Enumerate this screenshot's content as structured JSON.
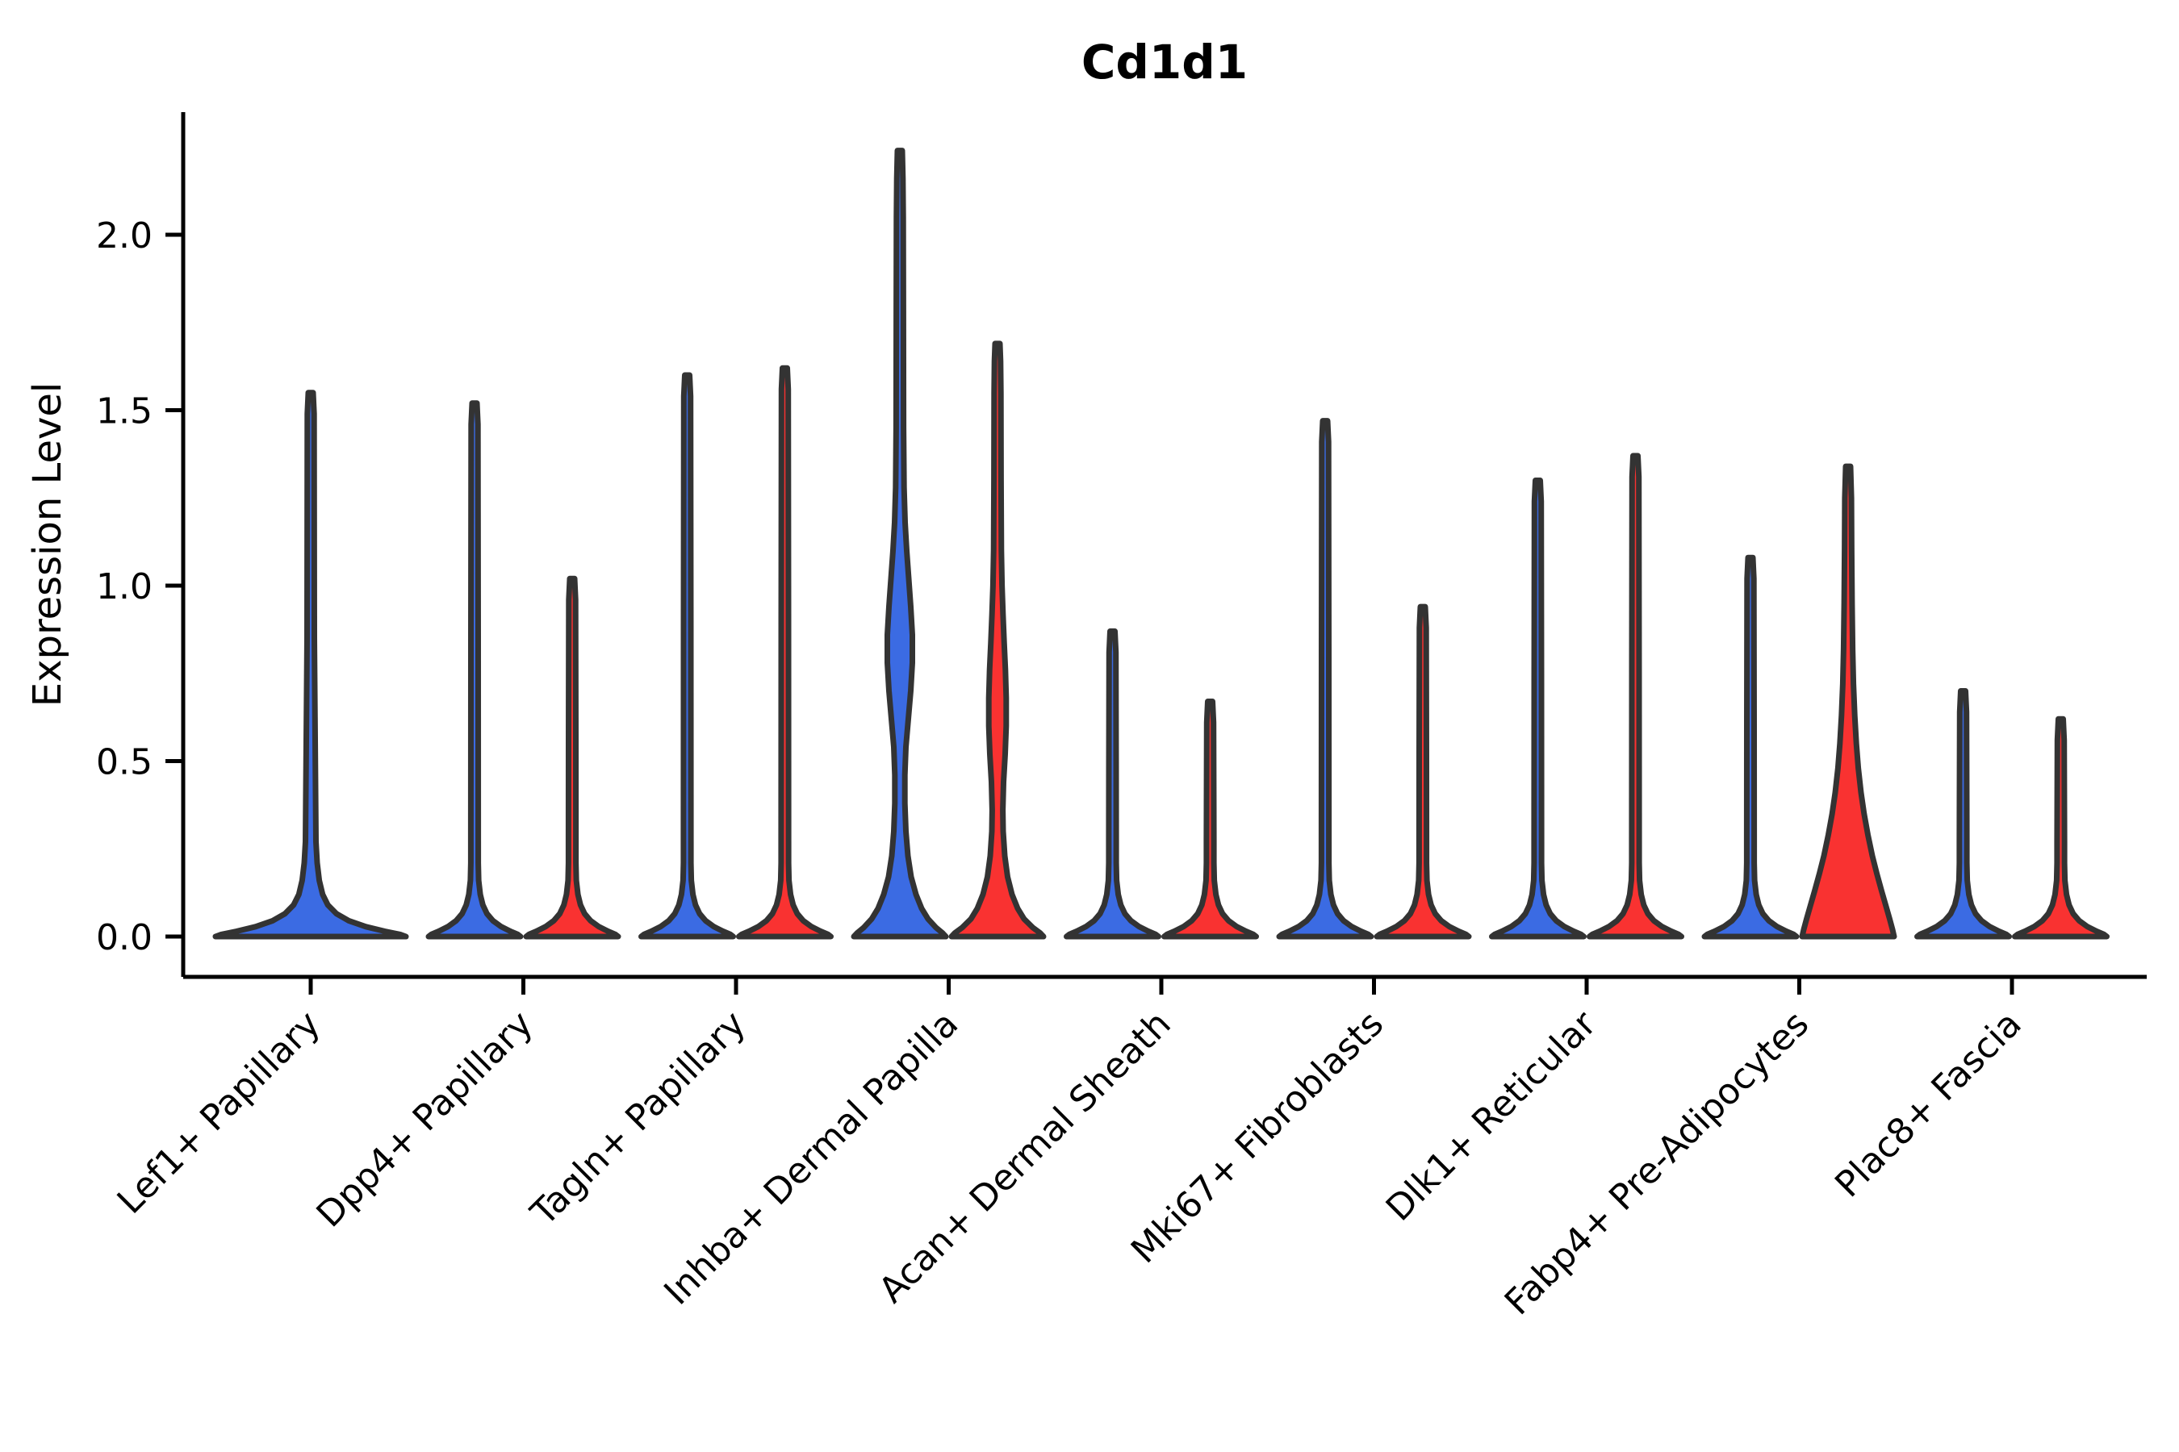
{
  "title": "Cd1d1",
  "y_axis": {
    "label": "Expression Level"
  },
  "colors": {
    "background": "#FFFFFF",
    "blue_fill": "#3B6BE3",
    "red_fill": "#F93231",
    "violin_outline": "#333333",
    "axis": "#000000",
    "text": "#000000"
  },
  "chart_data": {
    "type": "violin",
    "title": "Cd1d1",
    "xlabel": "",
    "ylabel": "Expression Level",
    "yticks": [
      0.0,
      0.5,
      1.0,
      1.5,
      2.0
    ],
    "ylim": [
      -0.08,
      2.35
    ],
    "grid": false,
    "legend": "none",
    "outline": "#333333",
    "categories": [
      "Lef1+ Papillary",
      "Dpp4+ Papillary",
      "Tagln+ Papillary",
      "Inhba+ Dermal Papilla",
      "Acan+ Dermal Sheath",
      "Mki67+ Fibroblasts",
      "Dlk1+ Reticular",
      "Fabp4+ Pre-Adipocytes",
      "Plac8+ Fascia"
    ],
    "groups": [
      {
        "name": "group-blue",
        "fill": "#3B6BE3"
      },
      {
        "name": "group-red",
        "fill": "#F93231"
      }
    ],
    "violins": [
      {
        "category_index": 0,
        "group": "single",
        "fill": "#3B6BE3",
        "peak": 1.55,
        "dx": 0,
        "base_halfwidth": 118
      },
      {
        "category_index": 1,
        "group": "group-blue",
        "fill": "#3B6BE3",
        "peak": 1.52,
        "dx": -60.5,
        "base_halfwidth": 57
      },
      {
        "category_index": 1,
        "group": "group-red",
        "fill": "#F93231",
        "peak": 1.02,
        "dx": 60.5,
        "base_halfwidth": 57
      },
      {
        "category_index": 2,
        "group": "group-blue",
        "fill": "#3B6BE3",
        "peak": 1.6,
        "dx": -60.5,
        "base_halfwidth": 57
      },
      {
        "category_index": 2,
        "group": "group-red",
        "fill": "#F93231",
        "peak": 1.62,
        "dx": 60.5,
        "base_halfwidth": 57
      },
      {
        "category_index": 3,
        "group": "group-blue",
        "fill": "#3B6BE3",
        "peak": 2.24,
        "dx": -60.5,
        "base_halfwidth": 57,
        "profile": [
          [
            0,
            57
          ],
          [
            0.01,
            53
          ],
          [
            0.025,
            45
          ],
          [
            0.05,
            35
          ],
          [
            0.08,
            27
          ],
          [
            0.12,
            20
          ],
          [
            0.17,
            14
          ],
          [
            0.23,
            10
          ],
          [
            0.3,
            7.5
          ],
          [
            0.38,
            6.2
          ],
          [
            0.46,
            6.2
          ],
          [
            0.54,
            7.5
          ],
          [
            0.62,
            10.5
          ],
          [
            0.7,
            13.5
          ],
          [
            0.78,
            15.5
          ],
          [
            0.86,
            15.5
          ],
          [
            0.94,
            13.5
          ],
          [
            1.02,
            11
          ],
          [
            1.1,
            8.5
          ],
          [
            1.18,
            6.5
          ],
          [
            1.28,
            5.2
          ],
          [
            1.45,
            4.6
          ],
          [
            1.8,
            4.4
          ],
          [
            2.05,
            4.2
          ],
          [
            2.16,
            3.8
          ],
          [
            2.24,
            3
          ]
        ]
      },
      {
        "category_index": 3,
        "group": "group-red",
        "fill": "#F93231",
        "peak": 1.69,
        "dx": 60.5,
        "base_halfwidth": 57,
        "profile": [
          [
            0,
            57
          ],
          [
            0.01,
            53
          ],
          [
            0.025,
            44
          ],
          [
            0.05,
            33
          ],
          [
            0.08,
            25
          ],
          [
            0.12,
            18
          ],
          [
            0.17,
            12.5
          ],
          [
            0.23,
            9
          ],
          [
            0.3,
            7
          ],
          [
            0.36,
            6.6
          ],
          [
            0.44,
            7.5
          ],
          [
            0.52,
            9.5
          ],
          [
            0.6,
            10.8
          ],
          [
            0.68,
            10.8
          ],
          [
            0.76,
            9.8
          ],
          [
            0.84,
            8.2
          ],
          [
            0.92,
            6.8
          ],
          [
            1.0,
            5.6
          ],
          [
            1.1,
            4.8
          ],
          [
            1.3,
            4.4
          ],
          [
            1.55,
            4.2
          ],
          [
            1.64,
            3.8
          ],
          [
            1.69,
            3
          ]
        ]
      },
      {
        "category_index": 4,
        "group": "group-blue",
        "fill": "#3B6BE3",
        "peak": 0.87,
        "dx": -60.5,
        "base_halfwidth": 57
      },
      {
        "category_index": 4,
        "group": "group-red",
        "fill": "#F93231",
        "peak": 0.67,
        "dx": 60.5,
        "base_halfwidth": 57
      },
      {
        "category_index": 5,
        "group": "group-blue",
        "fill": "#3B6BE3",
        "peak": 1.47,
        "dx": -60.5,
        "base_halfwidth": 57
      },
      {
        "category_index": 5,
        "group": "group-red",
        "fill": "#F93231",
        "peak": 0.94,
        "dx": 60.5,
        "base_halfwidth": 57
      },
      {
        "category_index": 6,
        "group": "group-blue",
        "fill": "#3B6BE3",
        "peak": 1.3,
        "dx": -60.5,
        "base_halfwidth": 57
      },
      {
        "category_index": 6,
        "group": "group-red",
        "fill": "#F93231",
        "peak": 1.37,
        "dx": 60.5,
        "base_halfwidth": 57
      },
      {
        "category_index": 7,
        "group": "group-blue",
        "fill": "#3B6BE3",
        "peak": 1.08,
        "dx": -60.5,
        "base_halfwidth": 57
      },
      {
        "category_index": 7,
        "group": "group-red",
        "fill": "#F93231",
        "peak": 1.34,
        "dx": 60.5,
        "base_halfwidth": 57,
        "profile": [
          [
            0,
            57
          ],
          [
            0.02,
            55
          ],
          [
            0.05,
            51.5
          ],
          [
            0.09,
            46.5
          ],
          [
            0.13,
            41.5
          ],
          [
            0.18,
            35.5
          ],
          [
            0.23,
            30
          ],
          [
            0.29,
            24.5
          ],
          [
            0.35,
            19.8
          ],
          [
            0.41,
            16
          ],
          [
            0.48,
            12.6
          ],
          [
            0.55,
            10.2
          ],
          [
            0.63,
            8.2
          ],
          [
            0.72,
            6.6
          ],
          [
            0.82,
            5.6
          ],
          [
            0.95,
            4.9
          ],
          [
            1.1,
            4.4
          ],
          [
            1.25,
            4.1
          ],
          [
            1.34,
            3
          ]
        ]
      },
      {
        "category_index": 8,
        "group": "group-blue",
        "fill": "#3B6BE3",
        "peak": 0.7,
        "dx": -60.5,
        "base_halfwidth": 57
      },
      {
        "category_index": 8,
        "group": "group-red",
        "fill": "#F93231",
        "peak": 0.62,
        "dx": 60.5,
        "base_halfwidth": 57
      }
    ]
  }
}
